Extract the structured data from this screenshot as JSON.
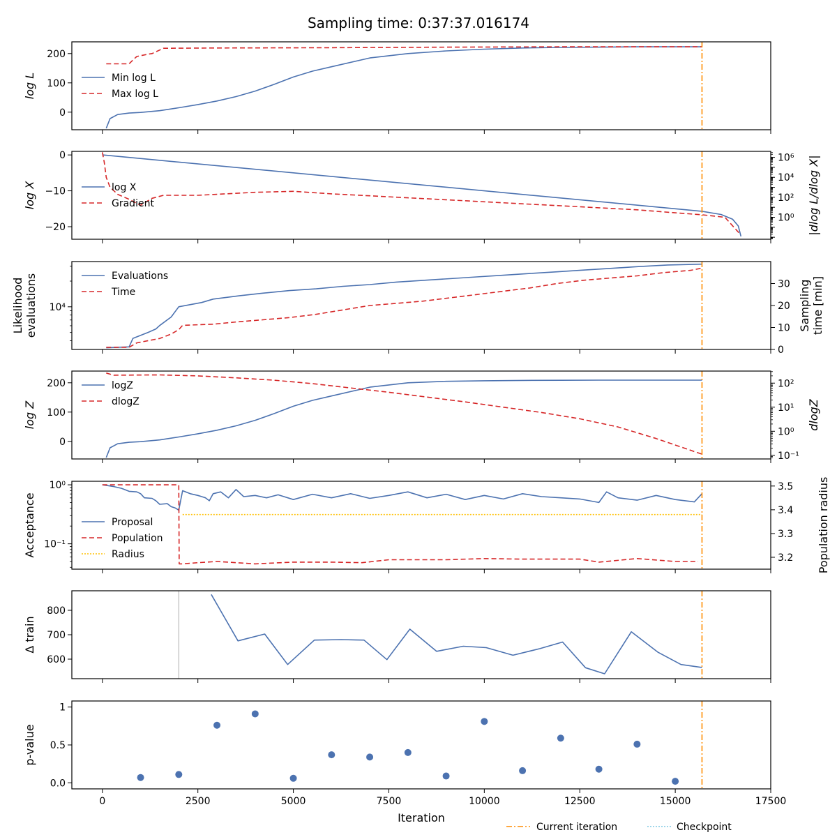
{
  "title": "Sampling time: 0:37:37.016174",
  "colors": {
    "blue": "#4c72b0",
    "red": "#d62728",
    "orange": "#ff8c00",
    "yellow": "#ffc107",
    "cyan": "#7ec8e3",
    "gray": "#c8c8c8"
  },
  "xaxis": {
    "label": "Iteration",
    "range": [
      -800,
      17500
    ],
    "ticks": [
      0,
      2500,
      5000,
      7500,
      10000,
      12500,
      15000,
      17500
    ]
  },
  "footer_legend": [
    {
      "label": "Current iteration",
      "color": "#ff8c00",
      "style": "dashdot"
    },
    {
      "label": "Checkpoint",
      "color": "#7ec8e3",
      "style": "dotted"
    }
  ],
  "chart_data": [
    {
      "type": "line",
      "title": "log L",
      "ylabel": "log L",
      "ylim": [
        -60,
        240
      ],
      "yticks": [
        0,
        100,
        200
      ],
      "legend": [
        "Min log L",
        "Max log L"
      ],
      "current_iteration": 15700,
      "series": [
        {
          "name": "Min log L",
          "color": "#4c72b0",
          "style": "solid",
          "x": [
            100,
            200,
            400,
            700,
            1000,
            1500,
            2000,
            2500,
            3000,
            3500,
            4000,
            4500,
            5000,
            5500,
            6000,
            7000,
            8000,
            9000,
            10000,
            11000,
            12000,
            13000,
            14000,
            15700
          ],
          "y": [
            -55,
            -22,
            -8,
            -3,
            -1,
            5,
            15,
            26,
            38,
            53,
            72,
            95,
            120,
            140,
            155,
            185,
            200,
            209,
            215,
            219,
            221,
            222,
            223,
            223
          ]
        },
        {
          "name": "Max log L",
          "color": "#d62728",
          "style": "dashed",
          "x": [
            100,
            700,
            800,
            900,
            1200,
            1300,
            1600,
            3000,
            6000,
            9000,
            12000,
            15700
          ],
          "y": [
            165,
            165,
            178,
            190,
            198,
            200,
            218,
            219,
            220,
            222,
            223,
            223
          ]
        }
      ]
    },
    {
      "type": "line",
      "title": "log X",
      "ylabel": "log X",
      "ylim": [
        -23.5,
        1
      ],
      "yticks": [
        0,
        -10,
        -20
      ],
      "y2label": "|dlog L/dlog X|",
      "y2log": true,
      "y2lim_exp": [
        -2.2,
        6.6
      ],
      "y2ticks_exp": [
        6,
        4,
        2,
        0
      ],
      "legend": [
        "log X",
        "Gradient"
      ],
      "current_iteration": 15700,
      "series": [
        {
          "name": "log X",
          "color": "#4c72b0",
          "style": "solid",
          "axis": "left",
          "x": [
            0,
            15000,
            15700,
            16200,
            16500,
            16650,
            16720
          ],
          "y": [
            0,
            -15.0,
            -15.7,
            -16.6,
            -17.9,
            -19.8,
            -22.7
          ]
        },
        {
          "name": "Gradient",
          "color": "#d62728",
          "style": "dashed",
          "axis": "right",
          "x": [
            0,
            50,
            100,
            200,
            400,
            700,
            1000,
            1300,
            1600,
            2500,
            4000,
            5000,
            6000,
            7000,
            8000,
            9000,
            10000,
            11000,
            12000,
            13000,
            14000,
            15000,
            15700,
            16300,
            16700
          ],
          "y_log10": [
            6.5,
            5.5,
            4.0,
            3.0,
            2.3,
            1.8,
            1.2,
            1.9,
            2.2,
            2.2,
            2.5,
            2.6,
            2.35,
            2.15,
            1.95,
            1.75,
            1.55,
            1.35,
            1.15,
            0.95,
            0.75,
            0.45,
            0.25,
            0.0,
            -1.7
          ]
        }
      ]
    },
    {
      "type": "line",
      "title": "Likelihood evaluations",
      "ylabel": "Likelihood evaluations",
      "ylog": true,
      "ytick_labels": [
        "10⁴"
      ],
      "ylim_exp": [
        3.5,
        4.53
      ],
      "y2label": "Sampling time [min]",
      "y2lim": [
        0,
        40
      ],
      "y2ticks": [
        0,
        10,
        20,
        30
      ],
      "legend": [
        "Evaluations",
        "Time"
      ],
      "current_iteration": 15700,
      "series": [
        {
          "name": "Evaluations",
          "color": "#4c72b0",
          "style": "solid",
          "axis": "left",
          "x": [
            100,
            700,
            800,
            1200,
            1400,
            1500,
            1800,
            2000,
            2600,
            2900,
            3600,
            4200,
            4900,
            5600,
            6300,
            7000,
            7700,
            8400,
            9100,
            9800,
            10500,
            11200,
            11900,
            12600,
            13300,
            14000,
            14800,
            15700
          ],
          "y_log10": [
            3.52,
            3.53,
            3.63,
            3.7,
            3.74,
            3.78,
            3.88,
            4.0,
            4.05,
            4.09,
            4.13,
            4.16,
            4.19,
            4.21,
            4.24,
            4.26,
            4.29,
            4.31,
            4.33,
            4.35,
            4.37,
            4.39,
            4.41,
            4.43,
            4.45,
            4.47,
            4.49,
            4.5
          ]
        },
        {
          "name": "Time",
          "color": "#d62728",
          "style": "dashed",
          "axis": "right",
          "x": [
            100,
            700,
            900,
            1200,
            1500,
            1800,
            2000,
            2100,
            2900,
            3500,
            4200,
            4900,
            5600,
            6300,
            7000,
            7700,
            8400,
            9100,
            9800,
            10500,
            11200,
            11900,
            12600,
            13300,
            14000,
            14700,
            15400,
            15700
          ],
          "y": [
            1,
            1,
            3,
            4,
            5,
            7,
            9,
            11,
            11.5,
            12.5,
            13.5,
            14.5,
            16,
            18,
            20,
            21,
            22,
            23.5,
            25,
            26.5,
            28,
            30,
            31.5,
            32.5,
            33.5,
            35,
            36,
            37
          ]
        }
      ]
    },
    {
      "type": "line",
      "title": "log Z",
      "ylabel": "log Z",
      "ylim": [
        -60,
        240
      ],
      "yticks": [
        0,
        100,
        200
      ],
      "y2label": "dlogZ",
      "y2log": true,
      "y2lim_exp": [
        -1.15,
        2.5
      ],
      "y2ticks_exp": [
        2,
        1,
        0,
        -1
      ],
      "legend": [
        "logZ",
        "dlogZ"
      ],
      "current_iteration": 15700,
      "series": [
        {
          "name": "logZ",
          "color": "#4c72b0",
          "style": "solid",
          "axis": "left",
          "x": [
            100,
            200,
            400,
            700,
            1000,
            1500,
            2000,
            2500,
            3000,
            3500,
            4000,
            4500,
            5000,
            5500,
            6000,
            7000,
            8000,
            9000,
            10000,
            11000,
            12000,
            13000,
            14000,
            15700
          ],
          "y": [
            -55,
            -22,
            -8,
            -3,
            -1,
            5,
            15,
            26,
            38,
            53,
            72,
            95,
            120,
            140,
            155,
            185,
            200,
            205,
            207,
            208,
            208.5,
            209,
            209,
            209
          ]
        },
        {
          "name": "dlogZ",
          "color": "#d62728",
          "style": "dashed",
          "axis": "right",
          "x": [
            100,
            300,
            1500,
            2500,
            3500,
            4500,
            5500,
            6500,
            7500,
            8500,
            9500,
            10500,
            11500,
            12500,
            13500,
            14500,
            15700
          ],
          "y_log10": [
            2.42,
            2.33,
            2.34,
            2.3,
            2.22,
            2.12,
            1.98,
            1.8,
            1.62,
            1.42,
            1.22,
            1.0,
            0.78,
            0.52,
            0.18,
            -0.3,
            -0.95
          ]
        }
      ]
    },
    {
      "type": "line",
      "title": "Acceptance",
      "ylabel": "Acceptance",
      "ylog": true,
      "ytick_labels": [
        "10⁰",
        "10⁻¹"
      ],
      "ylim_exp": [
        -1.43,
        0.06
      ],
      "y2label": "Population radius",
      "y2lim": [
        3.15,
        3.52
      ],
      "y2ticks": [
        3.5,
        3.4,
        3.3,
        3.2
      ],
      "legend": [
        "Proposal",
        "Population",
        "Radius"
      ],
      "current_iteration": 15700,
      "series": [
        {
          "name": "Proposal",
          "color": "#4c72b0",
          "style": "solid",
          "axis": "left",
          "x": [
            0,
            300,
            500,
            700,
            900,
            1000,
            1100,
            1300,
            1400,
            1500,
            1700,
            1800,
            1900,
            2000,
            2100,
            2300,
            2500,
            2600,
            2700,
            2800,
            2900,
            3100,
            3300,
            3500,
            3700,
            4000,
            4300,
            4600,
            5000,
            5500,
            6000,
            6500,
            7000,
            7500,
            8000,
            8500,
            9000,
            9500,
            10000,
            10500,
            11000,
            11500,
            12000,
            12500,
            13000,
            13200,
            13500,
            14000,
            14500,
            15000,
            15500,
            15700
          ],
          "y_log10": [
            0.0,
            -0.03,
            -0.06,
            -0.11,
            -0.12,
            -0.15,
            -0.22,
            -0.23,
            -0.27,
            -0.33,
            -0.32,
            -0.37,
            -0.39,
            -0.43,
            -0.1,
            -0.15,
            -0.18,
            -0.2,
            -0.22,
            -0.27,
            -0.15,
            -0.12,
            -0.22,
            -0.08,
            -0.2,
            -0.18,
            -0.22,
            -0.17,
            -0.25,
            -0.16,
            -0.22,
            -0.15,
            -0.23,
            -0.18,
            -0.12,
            -0.22,
            -0.16,
            -0.25,
            -0.18,
            -0.24,
            -0.15,
            -0.2,
            -0.22,
            -0.24,
            -0.3,
            -0.12,
            -0.22,
            -0.26,
            -0.18,
            -0.25,
            -0.29,
            -0.15
          ]
        },
        {
          "name": "Population",
          "color": "#d62728",
          "style": "dashed",
          "axis": "left",
          "x": [
            0,
            2000,
            2010,
            2100,
            2500,
            3000,
            4000,
            5000,
            6000,
            6800,
            7500,
            9000,
            10000,
            11000,
            12500,
            13000,
            14000,
            15000,
            15600
          ],
          "y_log10": [
            0.0,
            0.0,
            -1.34,
            -1.34,
            -1.32,
            -1.3,
            -1.34,
            -1.31,
            -1.31,
            -1.32,
            -1.27,
            -1.27,
            -1.25,
            -1.26,
            -1.26,
            -1.31,
            -1.25,
            -1.3,
            -1.3
          ]
        },
        {
          "name": "Radius",
          "color": "#ffc107",
          "style": "dotted",
          "axis": "right",
          "x": [
            2100,
            15700
          ],
          "y": [
            3.38,
            3.38
          ]
        }
      ]
    },
    {
      "type": "line",
      "title": "Δ train",
      "ylabel": "Δ train",
      "ylim": [
        520,
        880
      ],
      "yticks": [
        600,
        700,
        800
      ],
      "checkpoint_gray": 2000,
      "current_iteration": 15700,
      "series": [
        {
          "name": "Δ train",
          "color": "#4c72b0",
          "style": "solid",
          "x": [
            2850,
            3550,
            4250,
            4850,
            5550,
            6250,
            6850,
            7450,
            8050,
            8750,
            9450,
            10050,
            10750,
            11450,
            12050,
            12650,
            13150,
            13850,
            14550,
            15150,
            15700
          ],
          "y": [
            865,
            675,
            703,
            578,
            678,
            680,
            678,
            598,
            723,
            632,
            653,
            647,
            616,
            643,
            670,
            565,
            540,
            712,
            628,
            578,
            566
          ]
        }
      ]
    },
    {
      "type": "scatter",
      "title": "p-value",
      "ylabel": "p-value",
      "ylim": [
        -0.08,
        1.08
      ],
      "yticks": [
        0.0,
        0.5,
        1.0
      ],
      "current_iteration": 15700,
      "series": [
        {
          "name": "p-value",
          "color": "#4c72b0",
          "x": [
            1000,
            2000,
            3000,
            4000,
            5000,
            6000,
            7000,
            8000,
            9000,
            10000,
            11000,
            12000,
            13000,
            14000,
            15000
          ],
          "y": [
            0.07,
            0.11,
            0.76,
            0.91,
            0.06,
            0.37,
            0.34,
            0.4,
            0.09,
            0.81,
            0.16,
            0.59,
            0.18,
            0.51,
            0.02
          ]
        }
      ]
    }
  ]
}
